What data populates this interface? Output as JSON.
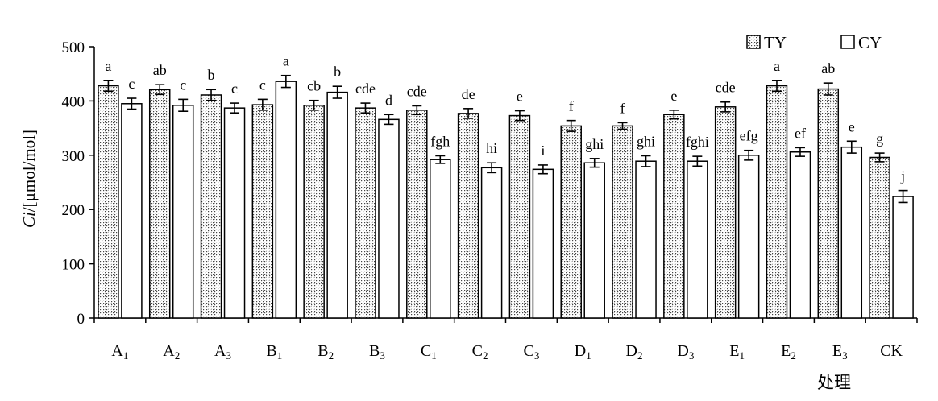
{
  "chart_data": {
    "type": "bar",
    "ylabel_italic": "Ci",
    "ylabel_rest": "/[μmol/mol]",
    "xlabel": "处理",
    "ylim": [
      0,
      500
    ],
    "yticks": [
      0,
      100,
      200,
      300,
      400,
      500
    ],
    "categories": [
      {
        "base": "A",
        "sub": "1"
      },
      {
        "base": "A",
        "sub": "2"
      },
      {
        "base": "A",
        "sub": "3"
      },
      {
        "base": "B",
        "sub": "1"
      },
      {
        "base": "B",
        "sub": "2"
      },
      {
        "base": "B",
        "sub": "3"
      },
      {
        "base": "C",
        "sub": "1"
      },
      {
        "base": "C",
        "sub": "2"
      },
      {
        "base": "C",
        "sub": "3"
      },
      {
        "base": "D",
        "sub": "1"
      },
      {
        "base": "D",
        "sub": "2"
      },
      {
        "base": "D",
        "sub": "3"
      },
      {
        "base": "E",
        "sub": "1"
      },
      {
        "base": "E",
        "sub": "2"
      },
      {
        "base": "E",
        "sub": "3"
      },
      {
        "base": "CK",
        "sub": ""
      }
    ],
    "series": [
      {
        "name": "TY",
        "fill": "hatched",
        "values": [
          428,
          421,
          411,
          393,
          392,
          387,
          383,
          377,
          373,
          354,
          354,
          375,
          389,
          428,
          422,
          296
        ],
        "errors": [
          10,
          9,
          10,
          10,
          9,
          9,
          8,
          9,
          9,
          10,
          6,
          8,
          9,
          10,
          11,
          8
        ],
        "labels": [
          "a",
          "ab",
          "b",
          "c",
          "cb",
          "cde",
          "cde",
          "de",
          "e",
          "f",
          "f",
          "e",
          "cde",
          "a",
          "ab",
          "g"
        ]
      },
      {
        "name": "CY",
        "fill": "white",
        "values": [
          395,
          392,
          387,
          436,
          416,
          366,
          292,
          277,
          274,
          286,
          289,
          289,
          300,
          306,
          315,
          224
        ],
        "errors": [
          10,
          11,
          9,
          11,
          11,
          9,
          7,
          9,
          8,
          8,
          10,
          9,
          9,
          8,
          11,
          11
        ],
        "labels": [
          "c",
          "c",
          "c",
          "a",
          "b",
          "d",
          "fgh",
          "hi",
          "i",
          "ghi",
          "ghi",
          "fghi",
          "efg",
          "ef",
          "e",
          "j"
        ]
      }
    ],
    "legend_position": "top-right"
  }
}
